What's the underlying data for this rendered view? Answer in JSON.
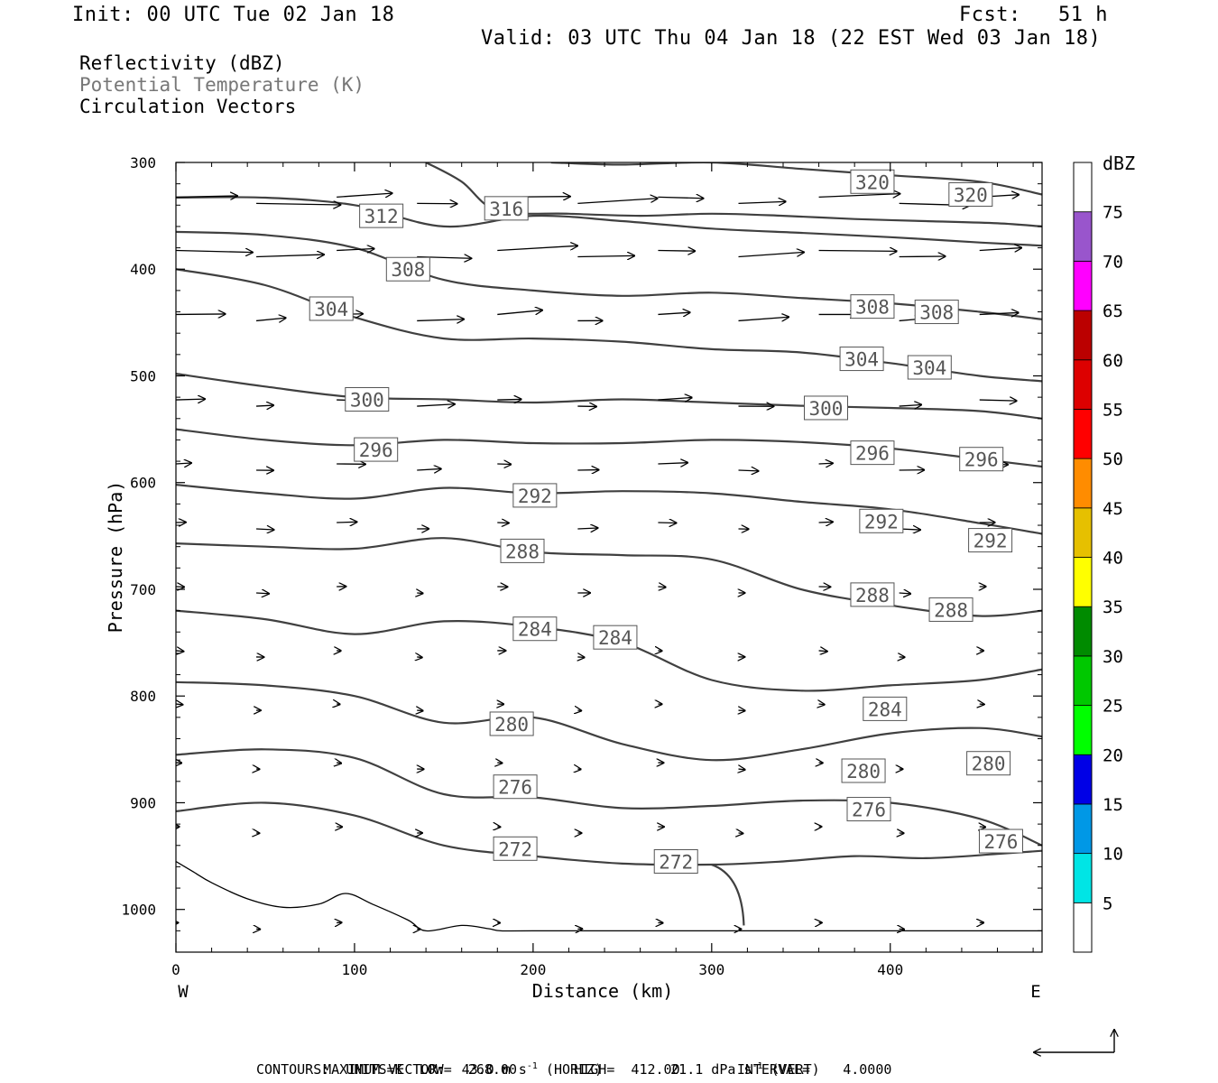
{
  "header": {
    "init": "Init: 00 UTC Tue 02 Jan 18",
    "fcst": "Fcst:   51 h",
    "valid": "Valid: 03 UTC Thu 04 Jan 18 (22 EST Wed 03 Jan 18)"
  },
  "fields": {
    "reflectivity": "Reflectivity (dBZ)",
    "theta": "Potential Temperature (K)",
    "vectors": "Circulation Vectors"
  },
  "colors": {
    "contour": "#404040",
    "theta_label": "#777777",
    "frame": "#000000"
  },
  "chart_data": {
    "type": "line",
    "xlabel": "Distance (km)",
    "ylabel": "Pressure (hPa)",
    "xlim": [
      0,
      485
    ],
    "ylim": [
      300,
      1040
    ],
    "y_scale": "linear, inverted (pressure decreasing upward)",
    "x_ticks": [
      "0",
      "100",
      "200",
      "300",
      "400"
    ],
    "y_ticks": [
      "300",
      "400",
      "500",
      "600",
      "700",
      "800",
      "900",
      "1000"
    ],
    "x_end_labels": {
      "left": "W",
      "right": "E"
    },
    "theta_contours": [
      {
        "value": 272,
        "x": [
          0,
          50,
          100,
          150,
          200,
          250,
          300,
          340,
          380,
          420,
          460,
          485
        ],
        "y": [
          908,
          900,
          912,
          940,
          950,
          957,
          958,
          955,
          950,
          952,
          948,
          945
        ]
      },
      {
        "value": 276,
        "x": [
          0,
          50,
          100,
          150,
          200,
          250,
          300,
          350,
          400,
          450,
          485
        ],
        "y": [
          855,
          850,
          858,
          892,
          895,
          905,
          903,
          898,
          900,
          915,
          940
        ]
      },
      {
        "value": 280,
        "x": [
          0,
          50,
          100,
          150,
          200,
          250,
          300,
          350,
          400,
          450,
          485
        ],
        "y": [
          787,
          790,
          800,
          825,
          820,
          845,
          860,
          850,
          835,
          830,
          838
        ]
      },
      {
        "value": 284,
        "x": [
          0,
          50,
          100,
          150,
          200,
          250,
          300,
          350,
          400,
          450,
          485
        ],
        "y": [
          720,
          728,
          742,
          730,
          735,
          750,
          785,
          795,
          790,
          785,
          775
        ]
      },
      {
        "value": 288,
        "x": [
          0,
          50,
          100,
          150,
          200,
          250,
          300,
          350,
          400,
          450,
          485
        ],
        "y": [
          657,
          660,
          662,
          652,
          665,
          668,
          672,
          700,
          715,
          725,
          720
        ]
      },
      {
        "value": 292,
        "x": [
          0,
          50,
          100,
          150,
          200,
          250,
          300,
          350,
          400,
          450,
          485
        ],
        "y": [
          602,
          610,
          615,
          605,
          610,
          608,
          610,
          618,
          625,
          638,
          648
        ]
      },
      {
        "value": 296,
        "x": [
          0,
          50,
          100,
          150,
          200,
          250,
          300,
          350,
          400,
          450,
          485
        ],
        "y": [
          550,
          560,
          565,
          560,
          563,
          563,
          560,
          562,
          568,
          578,
          585
        ]
      },
      {
        "value": 300,
        "x": [
          0,
          50,
          100,
          150,
          200,
          250,
          300,
          350,
          400,
          450,
          485
        ],
        "y": [
          498,
          510,
          520,
          522,
          525,
          522,
          525,
          528,
          530,
          533,
          540
        ]
      },
      {
        "value": 304,
        "x": [
          0,
          50,
          100,
          150,
          200,
          250,
          300,
          350,
          400,
          450,
          485
        ],
        "y": [
          400,
          415,
          445,
          465,
          465,
          468,
          475,
          478,
          488,
          500,
          505
        ]
      },
      {
        "value": 308,
        "x": [
          0,
          50,
          100,
          150,
          200,
          250,
          300,
          350,
          400,
          450,
          485
        ],
        "y": [
          365,
          368,
          380,
          410,
          420,
          425,
          422,
          427,
          432,
          440,
          447
        ]
      },
      {
        "value": 312,
        "x": [
          0,
          50,
          100,
          150,
          200,
          250,
          300,
          350,
          400,
          450,
          485
        ],
        "y": [
          333,
          333,
          340,
          360,
          350,
          355,
          362,
          366,
          370,
          375,
          378
        ]
      },
      {
        "value": 316,
        "x": [
          140,
          160,
          180,
          220,
          260,
          300,
          340,
          380,
          420,
          460,
          485
        ],
        "y": [
          300,
          318,
          345,
          348,
          350,
          348,
          350,
          353,
          355,
          357,
          360
        ]
      },
      {
        "value": 320,
        "x": [
          210,
          250,
          300,
          350,
          400,
          450,
          485
        ],
        "y": [
          300,
          302,
          300,
          306,
          312,
          318,
          330
        ]
      }
    ],
    "reflectivity_outline_x": [
      0,
      10,
      20,
      40,
      60,
      80,
      95,
      110,
      130,
      140,
      160,
      175,
      182,
      200,
      300,
      485
    ],
    "reflectivity_outline_y": [
      955,
      965,
      975,
      990,
      998,
      995,
      985,
      995,
      1010,
      1020,
      1015,
      1018,
      1020,
      1020,
      1020,
      1020
    ],
    "contour_labels": [
      {
        "text": "312",
        "x": 115,
        "y": 350
      },
      {
        "text": "316",
        "x": 185,
        "y": 343
      },
      {
        "text": "320",
        "x": 390,
        "y": 318
      },
      {
        "text": "320",
        "x": 445,
        "y": 330
      },
      {
        "text": "308",
        "x": 130,
        "y": 400
      },
      {
        "text": "304",
        "x": 87,
        "y": 437
      },
      {
        "text": "308",
        "x": 390,
        "y": 435
      },
      {
        "text": "308",
        "x": 426,
        "y": 440
      },
      {
        "text": "304",
        "x": 384,
        "y": 484
      },
      {
        "text": "304",
        "x": 422,
        "y": 492
      },
      {
        "text": "300",
        "x": 107,
        "y": 522
      },
      {
        "text": "300",
        "x": 364,
        "y": 530
      },
      {
        "text": "296",
        "x": 112,
        "y": 569
      },
      {
        "text": "296",
        "x": 390,
        "y": 572
      },
      {
        "text": "296",
        "x": 451,
        "y": 578
      },
      {
        "text": "292",
        "x": 201,
        "y": 612
      },
      {
        "text": "292",
        "x": 395,
        "y": 636
      },
      {
        "text": "292",
        "x": 456,
        "y": 654
      },
      {
        "text": "288",
        "x": 194,
        "y": 664
      },
      {
        "text": "288",
        "x": 390,
        "y": 705
      },
      {
        "text": "288",
        "x": 434,
        "y": 719
      },
      {
        "text": "284",
        "x": 201,
        "y": 737
      },
      {
        "text": "284",
        "x": 246,
        "y": 745
      },
      {
        "text": "284",
        "x": 397,
        "y": 812
      },
      {
        "text": "280",
        "x": 188,
        "y": 826
      },
      {
        "text": "280",
        "x": 385,
        "y": 870
      },
      {
        "text": "280",
        "x": 455,
        "y": 863
      },
      {
        "text": "276",
        "x": 190,
        "y": 885
      },
      {
        "text": "276",
        "x": 388,
        "y": 906
      },
      {
        "text": "276",
        "x": 462,
        "y": 936
      },
      {
        "text": "272",
        "x": 190,
        "y": 943
      },
      {
        "text": "272",
        "x": 280,
        "y": 955
      }
    ],
    "color_bar": {
      "unit": "dBZ",
      "labels": [
        "5",
        "10",
        "15",
        "20",
        "25",
        "30",
        "35",
        "40",
        "45",
        "50",
        "55",
        "60",
        "65",
        "70",
        "75"
      ],
      "colors": [
        "#00e5e5",
        "#0098e6",
        "#0000e6",
        "#00ff00",
        "#00c800",
        "#008b00",
        "#ffff00",
        "#e6c000",
        "#ff8c00",
        "#ff0000",
        "#dd0000",
        "#bb0000",
        "#ff00ff",
        "#9955cc"
      ]
    }
  },
  "footer": {
    "max_vector_1": "MAXIMUM VECTOR:  43.0 m s",
    "max_vector_2": "-1",
    "max_vector_3": " (HORIZ)",
    "max_vector_4": "21.1 dPa s",
    "max_vector_5": "-1",
    "max_vector_6": " (VERT)",
    "contours": "CONTOURS:  UNITS=K  LOW=  268.00       HIGH=  412.00       INTERVAL=    4.0000"
  }
}
